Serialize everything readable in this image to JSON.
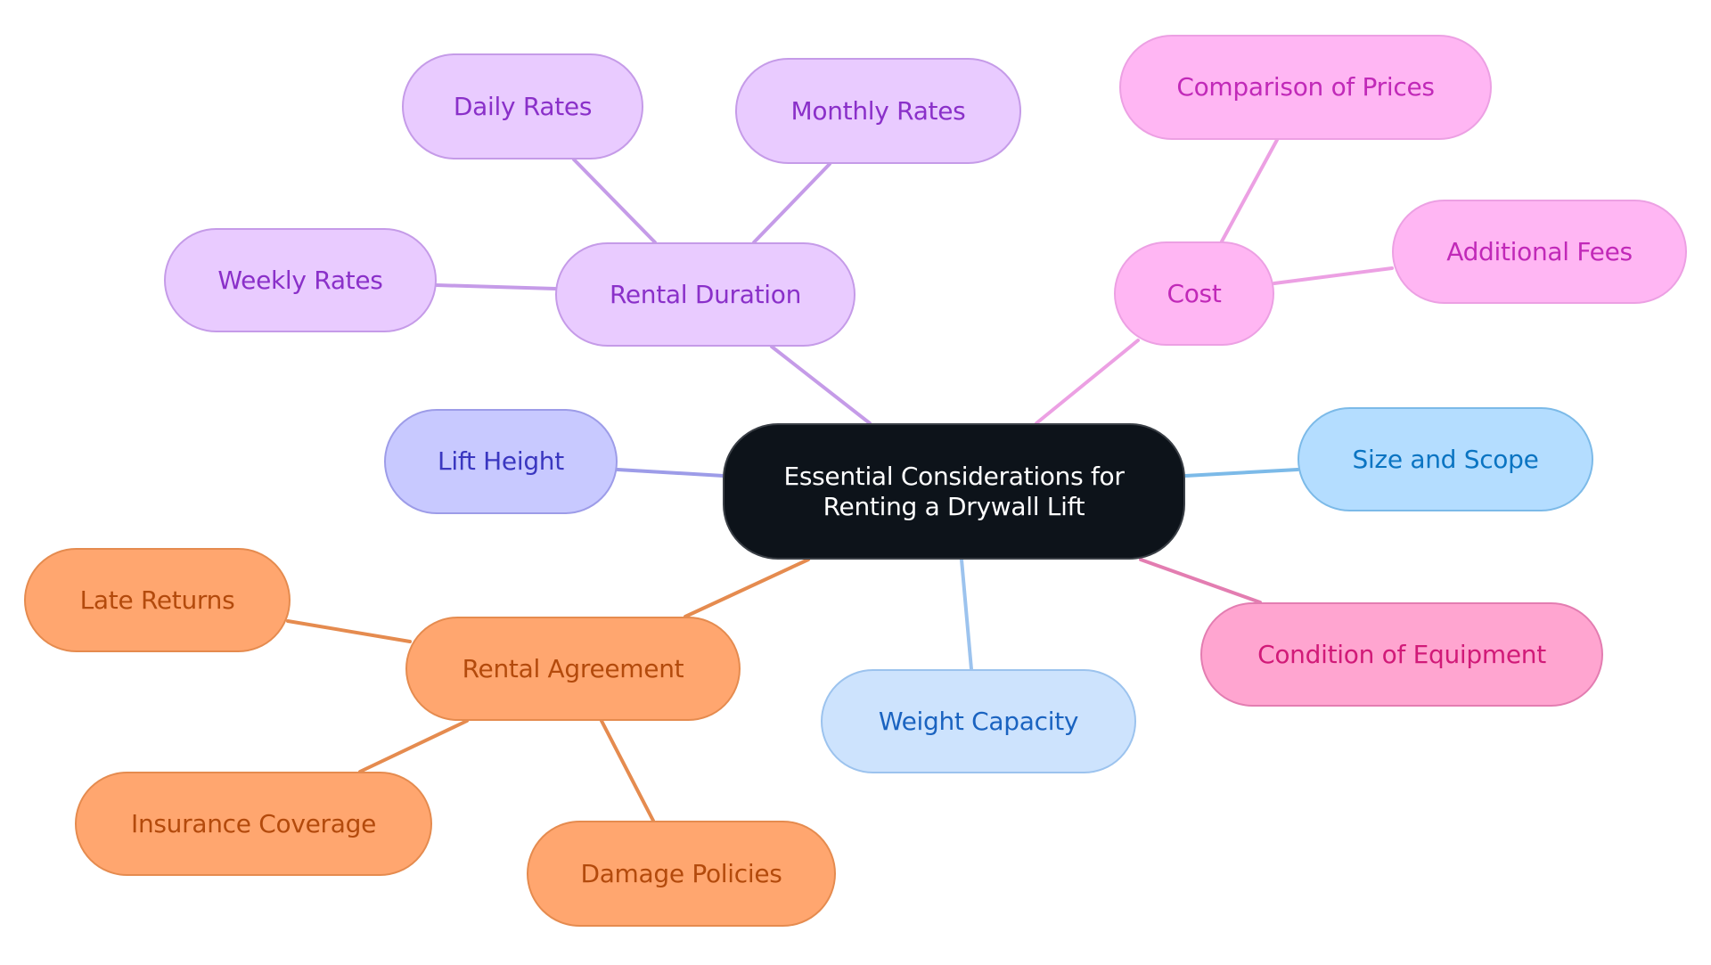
{
  "root": {
    "label_line1": "Essential Considerations for",
    "label_line2": "Renting a Drywall Lift"
  },
  "branches": {
    "rental_duration": {
      "label": "Rental Duration",
      "children": [
        "Daily Rates",
        "Monthly Rates",
        "Weekly Rates"
      ]
    },
    "cost": {
      "label": "Cost",
      "children": [
        "Comparison of Prices",
        "Additional Fees"
      ]
    },
    "lift_height": {
      "label": "Lift Height"
    },
    "size_and_scope": {
      "label": "Size and Scope"
    },
    "condition": {
      "label": "Condition of Equipment"
    },
    "weight_capacity": {
      "label": "Weight Capacity"
    },
    "rental_agreement": {
      "label": "Rental Agreement",
      "children": [
        "Late Returns",
        "Insurance Coverage",
        "Damage Policies"
      ]
    }
  },
  "colors": {
    "root": "#0d131a",
    "rental_duration": "#e9cbff",
    "cost": "#ffb6f3",
    "lift_height": "#c8c9ff",
    "size_and_scope": "#b4ddff",
    "weight_capacity": "#cde3fd",
    "condition": "#ffa5d0",
    "rental_agreement": "#ffa66f"
  }
}
